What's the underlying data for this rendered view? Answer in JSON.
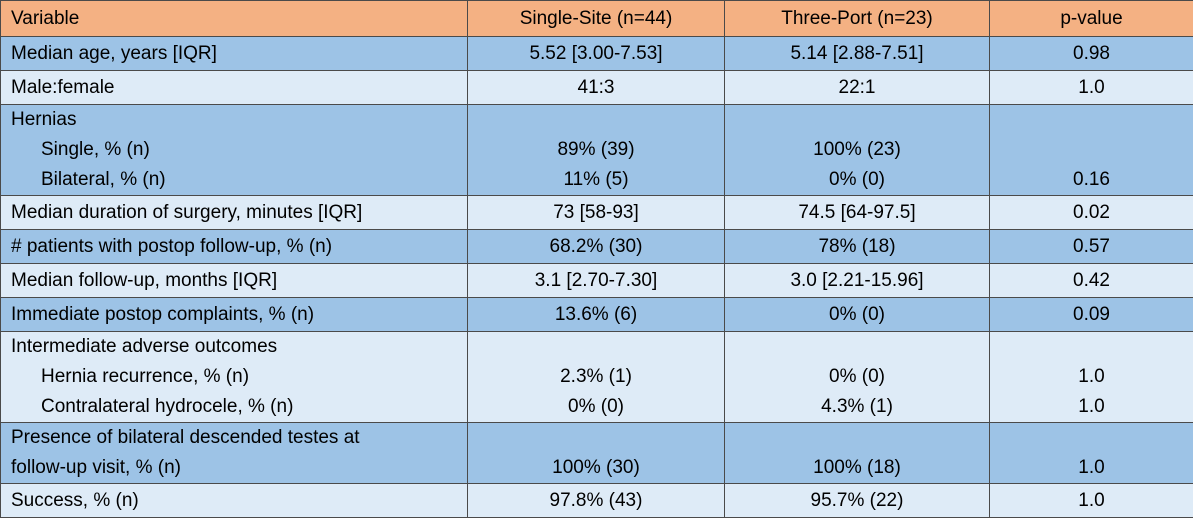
{
  "table": {
    "headers": [
      "Variable",
      "Single-Site (n=44)",
      "Three-Port (n=23)",
      "p-value"
    ],
    "rows": [
      {
        "variable": "Median age, years [IQR]",
        "single": "5.52 [3.00-7.53]",
        "three": "5.14 [2.88-7.51]",
        "p": "0.98"
      },
      {
        "variable": "Male:female",
        "single": "41:3",
        "three": "22:1",
        "p": "1.0"
      },
      {
        "variable": "Hernias",
        "sub": [
          {
            "label": "Single, % (n)",
            "single": "89% (39)",
            "three": "100% (23)"
          },
          {
            "label": "Bilateral, % (n)",
            "single": "11% (5)",
            "three": "0% (0)"
          }
        ],
        "p": "0.16"
      },
      {
        "variable": "Median duration of surgery, minutes [IQR]",
        "single": "73 [58-93]",
        "three": "74.5 [64-97.5]",
        "p": "0.02"
      },
      {
        "variable": "# patients with postop follow-up, % (n)",
        "single": "68.2% (30)",
        "three": "78% (18)",
        "p": "0.57"
      },
      {
        "variable": "Median follow-up, months [IQR]",
        "single": "3.1 [2.70-7.30]",
        "three": "3.0 [2.21-15.96]",
        "p": "0.42"
      },
      {
        "variable": "Immediate postop complaints, % (n)",
        "single": "13.6% (6)",
        "three": "0% (0)",
        "p": "0.09"
      },
      {
        "variable": "Intermediate adverse outcomes",
        "sub": [
          {
            "label": "Hernia recurrence, % (n)",
            "single": "2.3% (1)",
            "three": "0% (0)",
            "p": "1.0"
          },
          {
            "label": "Contralateral hydrocele, % (n)",
            "single": "0% (0)",
            "three": "4.3% (1)",
            "p": "1.0"
          }
        ]
      },
      {
        "variable_line1": "Presence of bilateral descended testes at",
        "variable_line2": "follow-up visit, % (n)",
        "single": "100% (30)",
        "three": "100% (18)",
        "p": "1.0"
      },
      {
        "variable": "Success, % (n)",
        "single": "97.8% (43)",
        "three": "95.7% (22)",
        "p": "1.0"
      }
    ]
  },
  "colors": {
    "header": "#f4b183",
    "row_dark": "#9dc3e6",
    "row_light": "#deebf7",
    "border": "#4a4a4a"
  }
}
